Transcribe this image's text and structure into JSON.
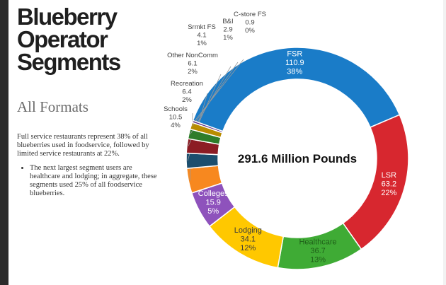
{
  "title_lines": [
    "Blueberry",
    "Operator",
    "Segments"
  ],
  "subtitle": "All Formats",
  "paragraph": "Full service restaurants represent 38% of all blueberries used in foodservice, followed by limited service restaurants at 22%.",
  "bullets": [
    "The next largest segment users are healthcare and lodging; in aggregate, these segments used 25% of all foodservice blueberries."
  ],
  "chart_data": {
    "type": "pie",
    "style": "donut",
    "center_label": "291.6 Million Pounds",
    "units": "Million Pounds",
    "slices": [
      {
        "name": "FSR",
        "value": 110.9,
        "value_label": "110.9",
        "percent": "38%",
        "color": "#1a7cc8"
      },
      {
        "name": "LSR",
        "value": 63.2,
        "value_label": "63.2",
        "percent": "22%",
        "color": "#d7272f"
      },
      {
        "name": "Healthcare",
        "value": 36.7,
        "value_label": "36.7",
        "percent": "13%",
        "color": "#3fab35"
      },
      {
        "name": "Lodging",
        "value": 34.1,
        "value_label": "34.1",
        "percent": "12%",
        "color": "#ffc800"
      },
      {
        "name": "Colleges",
        "value": 15.9,
        "value_label": "15.9",
        "percent": "5%",
        "color": "#8e52bc"
      },
      {
        "name": "Schools",
        "value": 10.5,
        "value_label": "10.5",
        "percent": "4%",
        "color": "#f7881f"
      },
      {
        "name": "Recreation",
        "value": 6.4,
        "value_label": "6.4",
        "percent": "2%",
        "color": "#1c4e6e"
      },
      {
        "name": "Other NonComm",
        "value": 6.1,
        "value_label": "6.1",
        "percent": "2%",
        "color": "#8c1c24"
      },
      {
        "name": "Srmkt FS",
        "value": 4.1,
        "value_label": "4.1",
        "percent": "1%",
        "color": "#2e7d2a"
      },
      {
        "name": "B&I",
        "value": 2.9,
        "value_label": "2.9",
        "percent": "1%",
        "color": "#b88c00"
      },
      {
        "name": "C-store FS",
        "value": 0.9,
        "value_label": "0.9",
        "percent": "0%",
        "color": "#5b2f86"
      }
    ]
  }
}
